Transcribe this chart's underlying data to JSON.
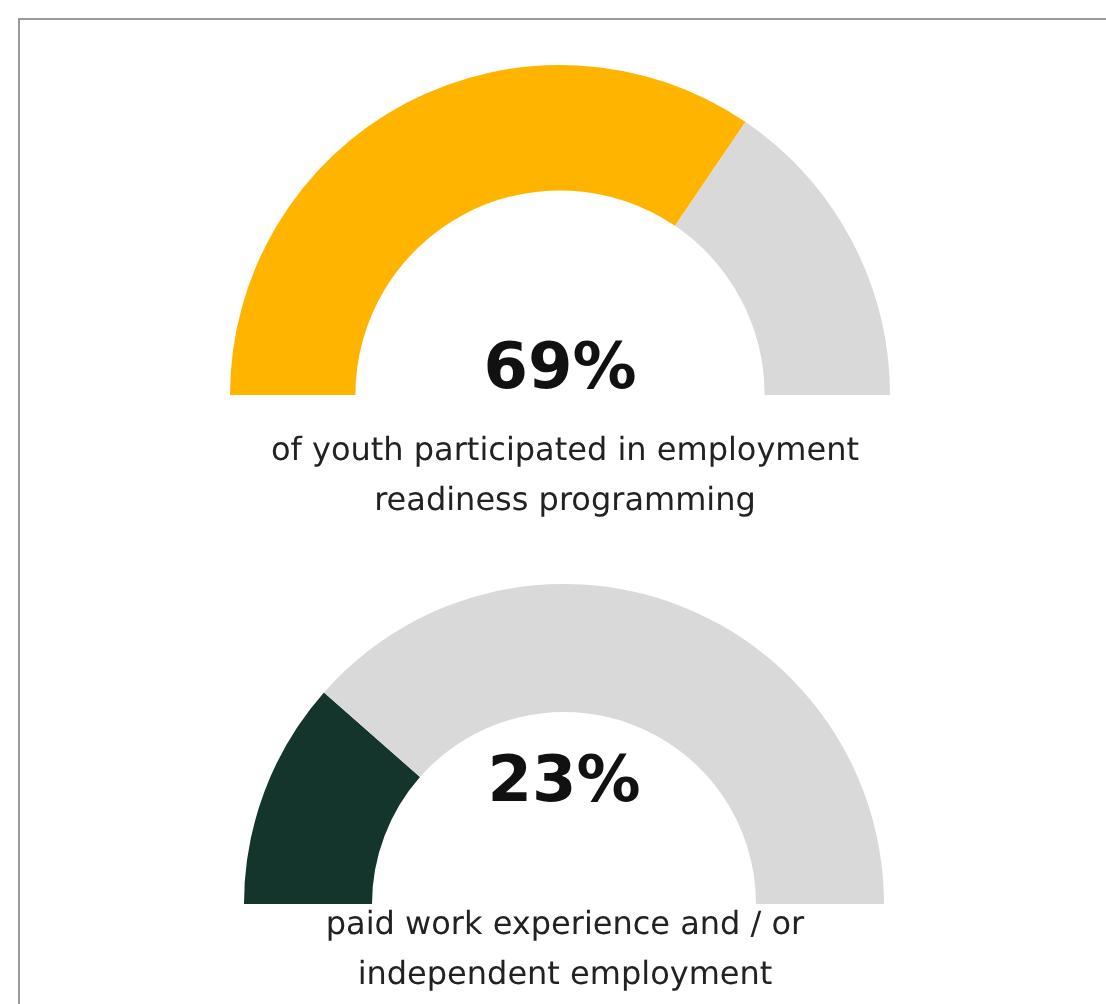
{
  "chart_data": [
    {
      "type": "donut",
      "title": "69%",
      "categories": [
        null,
        null
      ],
      "values": [
        69,
        31
      ],
      "colors": [
        "#ffb500",
        "#d9d9d9"
      ],
      "annotations": [
        "of youth participated in employment readiness programming"
      ]
    },
    {
      "type": "donut",
      "title": "23%",
      "categories": [
        null,
        null
      ],
      "values": [
        23,
        77
      ],
      "colors": [
        "#14352b",
        "#d9d9d9"
      ],
      "annotations": [
        "paid work experience and / or independent employment"
      ]
    }
  ]
}
